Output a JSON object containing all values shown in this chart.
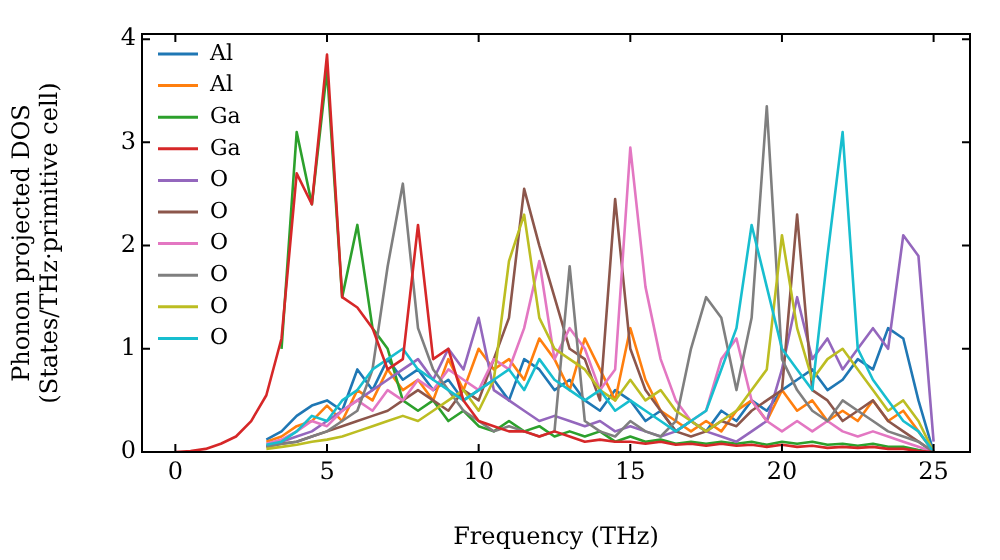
{
  "chart_data": {
    "type": "line",
    "xlabel": "Frequency (THz)",
    "ylabel": "Phonon projected DOS\n(States/THz·primitive cell)",
    "x": [
      0,
      0.5,
      1,
      1.5,
      2,
      2.5,
      3,
      3.5,
      4,
      4.5,
      5,
      5.5,
      6,
      6.5,
      7,
      7.5,
      8,
      8.5,
      9,
      9.5,
      10,
      10.5,
      11,
      11.5,
      12,
      12.5,
      13,
      13.5,
      14,
      14.5,
      15,
      15.5,
      16,
      16.5,
      17,
      17.5,
      18,
      18.5,
      19,
      19.5,
      20,
      20.5,
      21,
      21.5,
      22,
      22.5,
      23,
      23.5,
      24,
      24.5,
      25
    ],
    "xlim": [
      -1.1,
      26.2
    ],
    "xticks": [
      0,
      5,
      10,
      15,
      20,
      25
    ],
    "ylim": [
      0,
      4.05
    ],
    "yticks": [
      0,
      1,
      2,
      3,
      4
    ],
    "grid": false,
    "legend": "top left",
    "marker": "none",
    "line_style": "solid",
    "series": [
      {
        "name": "Al",
        "color": "#1f77b4",
        "values": [
          null,
          null,
          null,
          null,
          null,
          null,
          0.12,
          0.2,
          0.35,
          0.45,
          0.5,
          0.4,
          0.8,
          0.6,
          0.9,
          0.7,
          0.8,
          0.6,
          0.7,
          0.5,
          0.6,
          0.7,
          0.5,
          0.9,
          0.8,
          0.6,
          0.7,
          0.5,
          0.4,
          0.6,
          0.5,
          0.3,
          0.4,
          0.2,
          0.3,
          0.2,
          0.4,
          0.3,
          0.5,
          0.4,
          0.6,
          0.7,
          0.8,
          0.6,
          0.7,
          0.9,
          0.8,
          1.2,
          1.1,
          0.5,
          0
        ]
      },
      {
        "name": "Al",
        "color": "#ff7f0e",
        "values": [
          null,
          null,
          null,
          null,
          null,
          null,
          0.1,
          0.15,
          0.25,
          0.3,
          0.45,
          0.3,
          0.6,
          0.5,
          0.8,
          0.6,
          0.7,
          0.5,
          0.9,
          0.6,
          1.0,
          0.8,
          0.9,
          0.7,
          1.1,
          0.9,
          0.6,
          1.1,
          0.8,
          0.5,
          1.2,
          0.7,
          0.4,
          0.3,
          0.2,
          0.3,
          0.2,
          0.4,
          0.5,
          0.3,
          0.6,
          0.4,
          0.5,
          0.3,
          0.4,
          0.3,
          0.5,
          0.3,
          0.4,
          0.2,
          0
        ]
      },
      {
        "name": "Ga",
        "color": "#2ca02c",
        "values": [
          null,
          null,
          null,
          null,
          null,
          null,
          null,
          1.0,
          3.1,
          2.4,
          3.7,
          1.5,
          2.2,
          1.2,
          1.0,
          0.5,
          0.4,
          0.5,
          0.3,
          0.4,
          0.25,
          0.2,
          0.3,
          0.2,
          0.25,
          0.15,
          0.2,
          0.15,
          0.2,
          0.1,
          0.15,
          0.1,
          0.12,
          0.08,
          0.1,
          0.08,
          0.1,
          0.08,
          0.1,
          0.07,
          0.1,
          0.08,
          0.1,
          0.07,
          0.08,
          0.06,
          0.08,
          0.05,
          0.05,
          0.02,
          0
        ]
      },
      {
        "name": "Ga",
        "color": "#d62728",
        "values": [
          0,
          0.01,
          0.03,
          0.08,
          0.15,
          0.3,
          0.55,
          1.1,
          2.7,
          2.4,
          3.85,
          1.5,
          1.4,
          1.2,
          0.8,
          0.9,
          2.2,
          0.9,
          1.0,
          0.5,
          0.3,
          0.25,
          0.2,
          0.2,
          0.15,
          0.2,
          0.15,
          0.1,
          0.12,
          0.1,
          0.1,
          0.08,
          0.1,
          0.07,
          0.08,
          0.06,
          0.08,
          0.06,
          0.07,
          0.05,
          0.07,
          0.05,
          0.06,
          0.04,
          0.05,
          0.04,
          0.05,
          0.03,
          0.03,
          0.01,
          0
        ]
      },
      {
        "name": "O",
        "color": "#9467bd",
        "values": [
          null,
          null,
          null,
          null,
          null,
          null,
          0.06,
          0.1,
          0.15,
          0.2,
          0.3,
          0.4,
          0.5,
          0.6,
          0.7,
          0.8,
          0.9,
          0.7,
          1.0,
          0.8,
          1.3,
          0.6,
          0.5,
          0.4,
          0.3,
          0.35,
          0.3,
          0.25,
          0.3,
          0.2,
          0.25,
          0.2,
          0.15,
          0.2,
          0.3,
          0.2,
          0.15,
          0.1,
          0.2,
          0.3,
          0.8,
          1.5,
          0.9,
          1.1,
          0.8,
          1.0,
          1.2,
          1.0,
          2.1,
          1.9,
          0.1
        ]
      },
      {
        "name": "O",
        "color": "#8c564b",
        "values": [
          null,
          null,
          null,
          null,
          null,
          null,
          0.05,
          0.08,
          0.1,
          0.15,
          0.2,
          0.25,
          0.3,
          0.35,
          0.4,
          0.5,
          0.6,
          0.5,
          0.4,
          0.6,
          0.5,
          0.9,
          1.3,
          2.55,
          2.0,
          1.5,
          1.0,
          0.9,
          0.5,
          2.45,
          1.0,
          0.6,
          0.4,
          0.2,
          0.15,
          0.2,
          0.3,
          0.25,
          0.4,
          0.5,
          0.6,
          2.3,
          0.6,
          0.5,
          0.3,
          0.4,
          0.5,
          0.3,
          0.2,
          0.1,
          0
        ]
      },
      {
        "name": "O",
        "color": "#e377c2",
        "values": [
          null,
          null,
          null,
          null,
          null,
          null,
          0.08,
          0.12,
          0.2,
          0.3,
          0.25,
          0.4,
          0.5,
          0.4,
          0.6,
          0.5,
          0.7,
          0.6,
          0.8,
          0.7,
          0.6,
          0.9,
          0.8,
          1.2,
          1.85,
          0.9,
          1.2,
          1.0,
          0.6,
          0.8,
          2.95,
          1.6,
          0.9,
          0.5,
          0.3,
          0.4,
          0.9,
          1.1,
          0.5,
          0.3,
          0.2,
          0.3,
          0.2,
          0.3,
          0.2,
          0.15,
          0.2,
          0.15,
          0.1,
          0.05,
          0
        ]
      },
      {
        "name": "O",
        "color": "#7f7f7f",
        "values": [
          null,
          null,
          null,
          null,
          null,
          null,
          0.05,
          0.08,
          0.1,
          0.15,
          0.2,
          0.3,
          0.4,
          0.8,
          1.8,
          2.6,
          1.2,
          0.8,
          0.6,
          0.4,
          0.3,
          0.2,
          0.25,
          0.2,
          0.15,
          0.2,
          1.8,
          0.3,
          0.2,
          0.15,
          0.3,
          0.2,
          0.15,
          0.3,
          1.0,
          1.5,
          1.3,
          0.6,
          1.3,
          3.35,
          0.9,
          0.6,
          0.4,
          0.3,
          0.5,
          0.4,
          0.3,
          0.2,
          0.15,
          0.1,
          0
        ]
      },
      {
        "name": "O",
        "color": "#bcbd22",
        "values": [
          null,
          null,
          null,
          null,
          null,
          null,
          0.03,
          0.05,
          0.07,
          0.1,
          0.12,
          0.15,
          0.2,
          0.25,
          0.3,
          0.35,
          0.3,
          0.4,
          0.5,
          0.6,
          0.4,
          0.7,
          1.85,
          2.3,
          1.3,
          1.0,
          0.9,
          0.8,
          0.6,
          0.5,
          0.7,
          0.5,
          0.6,
          0.4,
          0.3,
          0.2,
          0.3,
          0.4,
          0.6,
          0.8,
          2.1,
          1.2,
          0.7,
          0.9,
          1.0,
          0.8,
          0.6,
          0.4,
          0.5,
          0.3,
          0
        ]
      },
      {
        "name": "O",
        "color": "#17becf",
        "values": [
          null,
          null,
          null,
          null,
          null,
          null,
          0.07,
          0.1,
          0.2,
          0.35,
          0.3,
          0.5,
          0.6,
          0.8,
          0.9,
          1.0,
          0.8,
          0.7,
          0.6,
          0.5,
          0.6,
          0.7,
          0.8,
          0.6,
          0.9,
          0.7,
          0.6,
          0.5,
          0.6,
          0.4,
          0.5,
          0.4,
          0.3,
          0.2,
          0.3,
          0.4,
          0.8,
          1.2,
          2.2,
          1.6,
          1.0,
          0.8,
          0.6,
          1.9,
          3.1,
          1.0,
          0.7,
          0.5,
          0.3,
          0.2,
          0
        ]
      }
    ]
  }
}
